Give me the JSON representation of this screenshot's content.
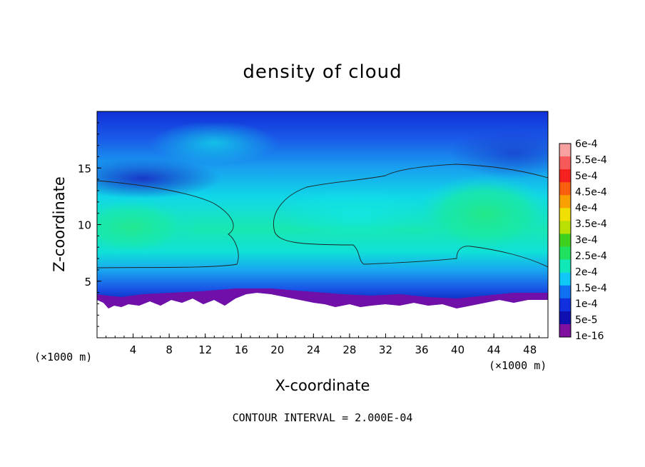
{
  "chart_data": {
    "type": "heatmap",
    "title": "density of cloud",
    "xlabel": "X-coordinate",
    "ylabel": "Z-coordinate",
    "x_unit": "(×1000 m)",
    "z_unit": "(×1000 m)",
    "xlim": [
      0,
      50
    ],
    "ylim": [
      0,
      20
    ],
    "x_ticks": [
      "4",
      "8",
      "12",
      "16",
      "20",
      "24",
      "28",
      "32",
      "36",
      "40",
      "44",
      "48"
    ],
    "y_ticks": [
      "5",
      "10",
      "15"
    ],
    "colorbar": {
      "labels": [
        "6e-4",
        "5.5e-4",
        "5e-4",
        "4.5e-4",
        "4e-4",
        "3.5e-4",
        "3e-4",
        "2.5e-4",
        "2e-4",
        "1.5e-4",
        "1e-4",
        "5e-5",
        "1e-16"
      ],
      "colors": [
        "#f9a0a0",
        "#f85a5a",
        "#f52020",
        "#f86010",
        "#f8a000",
        "#f0e000",
        "#b8e000",
        "#40d020",
        "#20e060",
        "#10e8b8",
        "#10c8f8",
        "#1070f0",
        "#1030e0",
        "#1010b0",
        "#8010a0"
      ]
    },
    "contour_levels": [
      0.0002
    ],
    "contour_interval": "CONTOUR INTERVAL = 2.000E-04",
    "background_color": "#ffffff",
    "zero_region_color": "#ffffff"
  }
}
